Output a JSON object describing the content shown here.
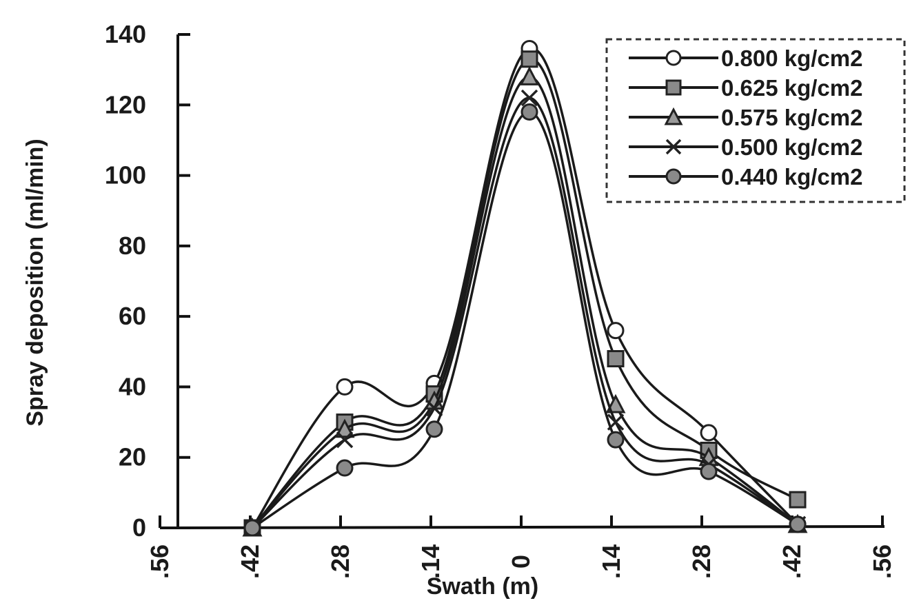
{
  "chart_data": {
    "type": "line",
    "title": "",
    "xlabel": "Swath (m)",
    "ylabel": "Spray deposition (ml/min)",
    "ylim": [
      0,
      140
    ],
    "yticks": [
      "0",
      "20",
      "40",
      "60",
      "80",
      "100",
      "120",
      "140"
    ],
    "xticks": [
      ".56",
      ".42",
      ".28",
      ".14",
      "0",
      ".14",
      ".28",
      ".42",
      ".56"
    ],
    "x": [
      -0.42,
      -0.28,
      -0.14,
      0,
      0.14,
      0.28,
      0.42
    ],
    "legend_position": "top-right",
    "legend_border": "dashed",
    "series": [
      {
        "name": "0.800 kg/cm2",
        "marker": "open-circle",
        "values": [
          0,
          40,
          41,
          136,
          56,
          27,
          1
        ]
      },
      {
        "name": "0.625 kg/cm2",
        "marker": "square",
        "values": [
          0,
          30,
          38,
          133,
          48,
          22,
          8
        ]
      },
      {
        "name": "0.575 kg/cm2",
        "marker": "triangle",
        "values": [
          0,
          28,
          36,
          128,
          35,
          20,
          1
        ]
      },
      {
        "name": "0.500 kg/cm2",
        "marker": "x",
        "values": [
          0,
          25,
          34,
          122,
          30,
          18,
          1
        ]
      },
      {
        "name": "0.440 kg/cm2",
        "marker": "filled-circle",
        "values": [
          0,
          17,
          28,
          118,
          25,
          16,
          1
        ]
      }
    ]
  }
}
